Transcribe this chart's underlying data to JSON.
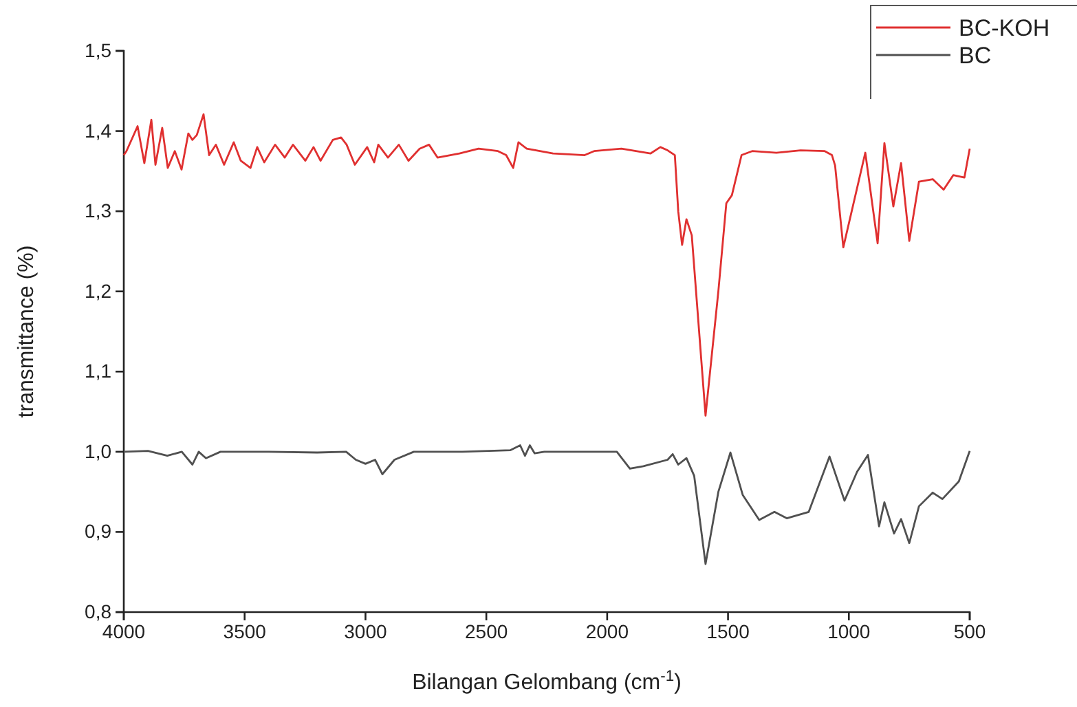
{
  "chart_data": {
    "type": "line",
    "xlabel": "Bilangan Gelombang (cm$^{-1}$)",
    "ylabel": "transmittance (%)",
    "xlim": [
      4000,
      500
    ],
    "xticks": [
      4000,
      3500,
      3000,
      2500,
      2000,
      1500,
      1000,
      500
    ],
    "ylim": [
      0.8,
      1.5
    ],
    "yticks": [
      {
        "value": 0.8,
        "label": "0,8"
      },
      {
        "value": 0.9,
        "label": "0,9"
      },
      {
        "value": 1.0,
        "label": "1,0"
      },
      {
        "value": 1.1,
        "label": "1,1"
      },
      {
        "value": 1.2,
        "label": "1,2"
      },
      {
        "value": 1.3,
        "label": "1,3"
      },
      {
        "value": 1.4,
        "label": "1,4"
      },
      {
        "value": 1.5,
        "label": "1,5"
      }
    ],
    "legend": "top right",
    "grid": false,
    "line_style": "solid",
    "marker": "none",
    "series": [
      {
        "name": "BC-KOH",
        "color": "#e03030",
        "x": [
          4000,
          3989,
          3943,
          3915,
          3886,
          3869,
          3841,
          3818,
          3789,
          3761,
          3733,
          3716,
          3698,
          3670,
          3647,
          3619,
          3585,
          3545,
          3516,
          3476,
          3448,
          3419,
          3374,
          3334,
          3300,
          3249,
          3215,
          3186,
          3135,
          3101,
          3078,
          3044,
          2993,
          2964,
          2947,
          2907,
          2862,
          2822,
          2776,
          2737,
          2702,
          2611,
          2532,
          2452,
          2418,
          2389,
          2367,
          2333,
          2224,
          2093,
          2054,
          1941,
          1821,
          1780,
          1750,
          1720,
          1706,
          1690,
          1672,
          1650,
          1593,
          1540,
          1507,
          1484,
          1444,
          1400,
          1300,
          1200,
          1100,
          1070,
          1057,
          1023,
          932,
          881,
          853,
          816,
          784,
          750,
          710,
          653,
          608,
          568,
          522,
          500
        ],
        "values": [
          1.37,
          1.375,
          1.406,
          1.36,
          1.414,
          1.358,
          1.404,
          1.354,
          1.375,
          1.352,
          1.397,
          1.389,
          1.395,
          1.421,
          1.37,
          1.383,
          1.358,
          1.386,
          1.363,
          1.354,
          1.38,
          1.361,
          1.383,
          1.367,
          1.383,
          1.363,
          1.38,
          1.363,
          1.389,
          1.392,
          1.383,
          1.358,
          1.38,
          1.361,
          1.383,
          1.367,
          1.383,
          1.363,
          1.378,
          1.383,
          1.367,
          1.372,
          1.378,
          1.375,
          1.37,
          1.354,
          1.386,
          1.378,
          1.372,
          1.37,
          1.375,
          1.378,
          1.372,
          1.38,
          1.376,
          1.37,
          1.3,
          1.258,
          1.29,
          1.27,
          1.045,
          1.2,
          1.31,
          1.32,
          1.37,
          1.375,
          1.373,
          1.376,
          1.375,
          1.37,
          1.357,
          1.255,
          1.373,
          1.26,
          1.385,
          1.306,
          1.36,
          1.263,
          1.337,
          1.34,
          1.327,
          1.345,
          1.342,
          1.378
        ]
      },
      {
        "name": "BC",
        "color": "#505050",
        "x": [
          4000,
          3900,
          3820,
          3760,
          3716,
          3690,
          3660,
          3600,
          3400,
          3200,
          3080,
          3040,
          3000,
          2960,
          2930,
          2880,
          2800,
          2600,
          2400,
          2360,
          2340,
          2320,
          2300,
          2260,
          2100,
          1960,
          1906,
          1850,
          1750,
          1729,
          1706,
          1672,
          1640,
          1593,
          1540,
          1490,
          1439,
          1371,
          1308,
          1257,
          1166,
          1080,
          1018,
          966,
          921,
          875,
          853,
          813,
          784,
          750,
          710,
          653,
          613,
          545,
          500
        ],
        "values": [
          1.0,
          1.001,
          0.995,
          1.0,
          0.984,
          1.0,
          0.992,
          1.0,
          1.0,
          0.999,
          1.0,
          0.99,
          0.985,
          0.99,
          0.972,
          0.99,
          1.0,
          1.0,
          1.002,
          1.008,
          0.995,
          1.008,
          0.998,
          1.0,
          1.0,
          1.0,
          0.979,
          0.982,
          0.99,
          0.997,
          0.984,
          0.992,
          0.97,
          0.86,
          0.95,
          0.999,
          0.946,
          0.915,
          0.925,
          0.917,
          0.925,
          0.994,
          0.939,
          0.975,
          0.996,
          0.907,
          0.937,
          0.898,
          0.916,
          0.886,
          0.932,
          0.949,
          0.941,
          0.963,
          1.001
        ]
      }
    ]
  }
}
